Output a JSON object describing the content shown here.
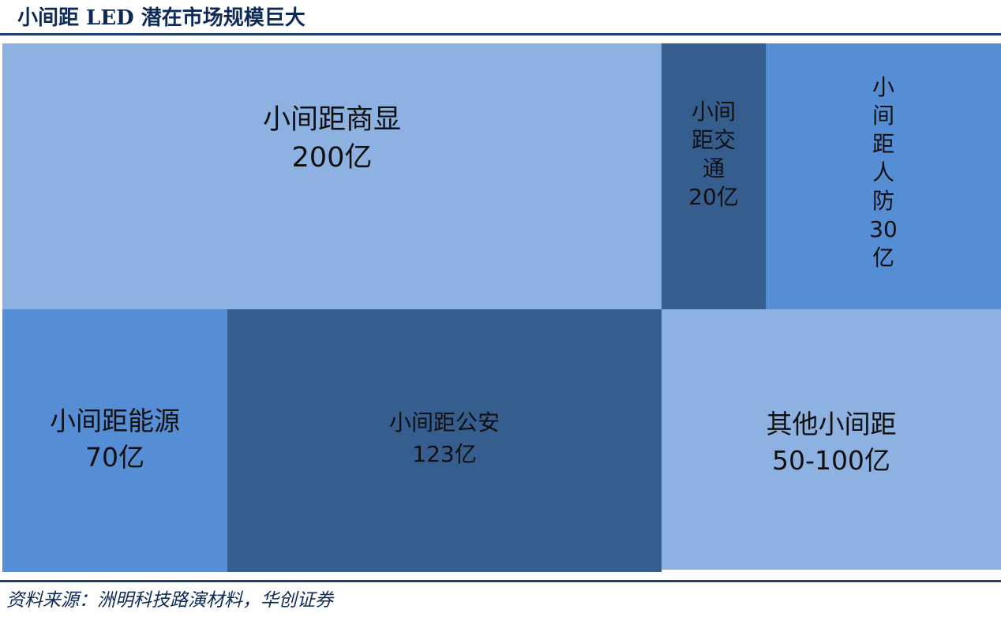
{
  "title": "小间距 LED 潜在市场规模巨大",
  "source": "资料来源：洲明科技路演材料，华创证券",
  "colors": {
    "light": "#8db2e2",
    "medium": "#568ed5",
    "dark": "#355e8f",
    "title": "#0d2a57",
    "rule": "#1f3f6c"
  },
  "chart_data": {
    "type": "treemap",
    "title": "小间距 LED 潜在市场规模巨大",
    "unit": "亿",
    "items": [
      {
        "label": "小间距商显",
        "value_text": "200亿",
        "value": 200,
        "color": "light"
      },
      {
        "label": "小间距交通",
        "value_text": "20亿",
        "value": 20,
        "color": "dark"
      },
      {
        "label": "小间距人防",
        "value_text": "30亿",
        "value": 30,
        "color": "medium"
      },
      {
        "label": "小间距能源",
        "value_text": "70亿",
        "value": 70,
        "color": "medium"
      },
      {
        "label": "小间距公安",
        "value_text": "123亿",
        "value": 123,
        "color": "dark"
      },
      {
        "label": "其他小间距",
        "value_text": "50-100亿",
        "value": [
          50,
          100
        ],
        "color": "light"
      }
    ]
  }
}
